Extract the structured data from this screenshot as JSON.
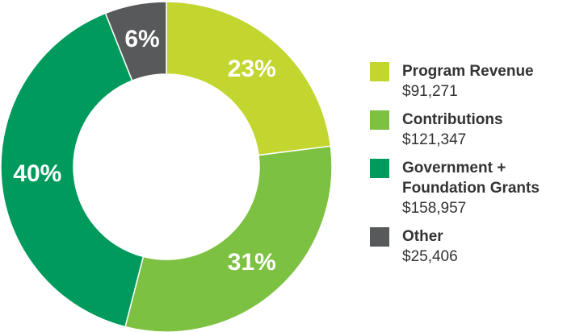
{
  "chart_data": {
    "type": "pie",
    "categories": [
      "Program Revenue",
      "Contributions",
      "Government + Foundation Grants",
      "Other"
    ],
    "values": [
      23,
      31,
      40,
      6
    ],
    "value_labels": [
      "23%",
      "31%",
      "40%",
      "6%"
    ],
    "amounts": [
      "$91,271",
      "$121,347",
      "$158,957",
      "$25,406"
    ],
    "colors": [
      "#c3d52f",
      "#7dc142",
      "#009a5c",
      "#58595b"
    ]
  }
}
